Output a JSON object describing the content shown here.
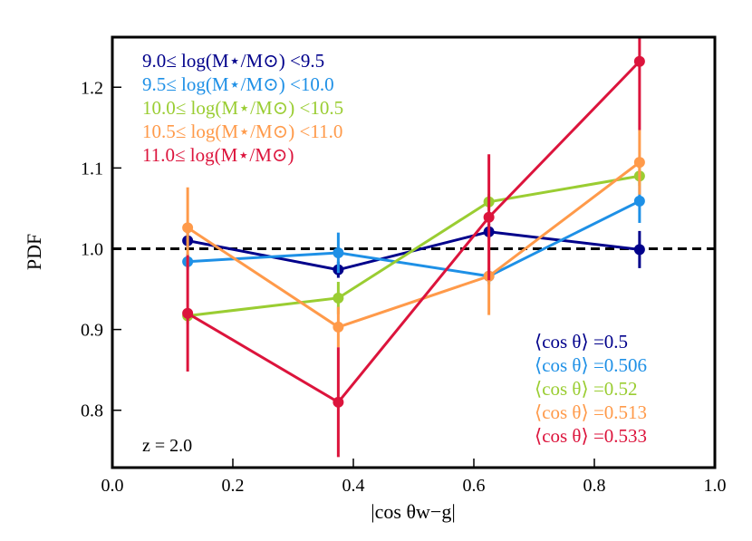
{
  "chart_data": {
    "type": "line",
    "xlabel": "|cos θw−g|",
    "ylabel": "PDF",
    "xlim": [
      0.0,
      1.0
    ],
    "ylim": [
      0.729,
      1.262
    ],
    "xticks": [
      "0.0",
      "0.2",
      "0.4",
      "0.6",
      "0.8",
      "1.0"
    ],
    "xtick_values": [
      0.0,
      0.2,
      0.4,
      0.6,
      0.8,
      1.0
    ],
    "yticks": [
      "0.8",
      "0.9",
      "1.0",
      "1.1",
      "1.2"
    ],
    "ytick_values": [
      0.8,
      0.9,
      1.0,
      1.1,
      1.2
    ],
    "reference_line": {
      "y": 1.0,
      "style": "dashed",
      "color": "#000000"
    },
    "annotation": "z = 2.0",
    "x": [
      0.125,
      0.375,
      0.625,
      0.875
    ],
    "series": [
      {
        "name": "9.0≤ log(M⋆/M⊙) <9.5",
        "color": "#00008b",
        "values": [
          1.01,
          0.974,
          1.021,
          0.999
        ],
        "errors": [
          0.01,
          0.01,
          0.01,
          0.023
        ],
        "mean_label": "⟨cos θ⟩ =0.5"
      },
      {
        "name": "9.5≤ log(M⋆/M⊙) <10.0",
        "color": "#1e90e6",
        "values": [
          0.984,
          0.995,
          0.966,
          1.059
        ],
        "errors": [
          0.01,
          0.025,
          0.01,
          0.027
        ],
        "mean_label": "⟨cos θ⟩ =0.506"
      },
      {
        "name": "10.0≤ log(M⋆/M⊙) <10.5",
        "color": "#9acd32",
        "values": [
          0.917,
          0.939,
          1.058,
          1.09
        ],
        "errors": [
          0.01,
          0.02,
          0.01,
          0.012
        ],
        "mean_label": "⟨cos θ⟩ =0.52"
      },
      {
        "name": "10.5≤ log(M⋆/M⊙) <11.0",
        "color": "#ff9a4a",
        "values": [
          1.026,
          0.903,
          0.966,
          1.107
        ],
        "errors": [
          0.05,
          0.025,
          0.048,
          0.04
        ],
        "mean_label": "⟨cos θ⟩ =0.513"
      },
      {
        "name": "11.0≤ log(M⋆/M⊙)",
        "color": "#dc143c",
        "values": [
          0.92,
          0.81,
          1.039,
          1.232
        ],
        "errors": [
          0.072,
          0.068,
          0.078,
          0.085
        ],
        "mean_label": "⟨cos θ⟩ =0.533"
      }
    ],
    "legend_placement": "top-left",
    "grid": false
  }
}
